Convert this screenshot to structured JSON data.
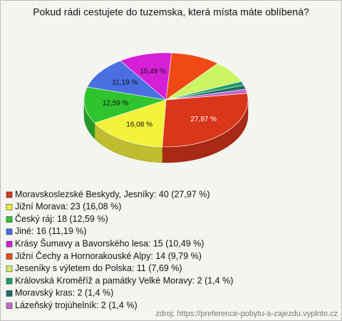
{
  "chart_data": {
    "type": "pie3d",
    "title": "Pokud rádi cestujete do tuzemska, která místa máte oblíbená?",
    "legend": [
      "Moravskoslezské Beskydy, Jesníky: 40 (27,97 %)",
      "Jižní Morava: 23 (16,08 %)",
      "Český ráj: 18 (12,59 %)",
      "Jiné: 16 (11,19 %)",
      "Krásy Šumavy a Bavorského lesa: 15 (10,49 %)",
      "Jižní Čechy a Hornorakouské Alpy: 14 (9,79 %)",
      "Jeseníky s výletem do Polska: 11 (7,69 %)",
      "Královská Kroměříž a památky Velké Moravy: 2 (1,4 %)",
      "Moravský kras: 2 (1,4 %)",
      "Lázeňský trojúhelník: 2 (1,4 %)"
    ],
    "values": [
      27.97,
      16.08,
      12.59,
      11.19,
      10.49,
      9.79,
      7.69,
      1.4,
      1.4,
      1.4
    ],
    "value_labels": [
      "27,97 %",
      "16,08 %",
      "12,59 %",
      "11,19 %",
      "10,49 %",
      null,
      null,
      null,
      null,
      null
    ],
    "colors": [
      "#d9361a",
      "#f2f23a",
      "#2fc42f",
      "#4a6fe3",
      "#d61fd6",
      "#f04a14",
      "#ccf566",
      "#1f9e66",
      "#1f6b6b",
      "#c966c9"
    ],
    "source": "zdroj: https://preference-pobytu-a-zajezdu.vyplnto.cz"
  }
}
